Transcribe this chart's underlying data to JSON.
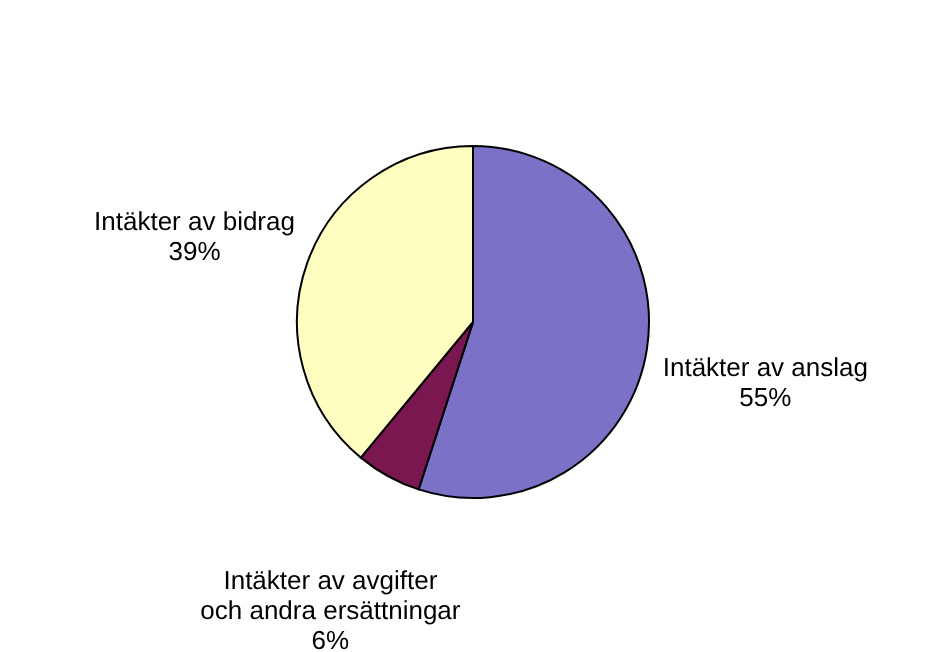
{
  "chart_data": {
    "type": "pie",
    "categories": [
      "Intäkter av anslag",
      "Intäkter av avgifter och andra ersättningar",
      "Intäkter av bidrag"
    ],
    "values": [
      55,
      6,
      39
    ],
    "colors": [
      "#7b72c8",
      "#7a1650",
      "#ffffc2"
    ],
    "value_labels": [
      "55%",
      "6%",
      "39%"
    ],
    "legend": false
  }
}
